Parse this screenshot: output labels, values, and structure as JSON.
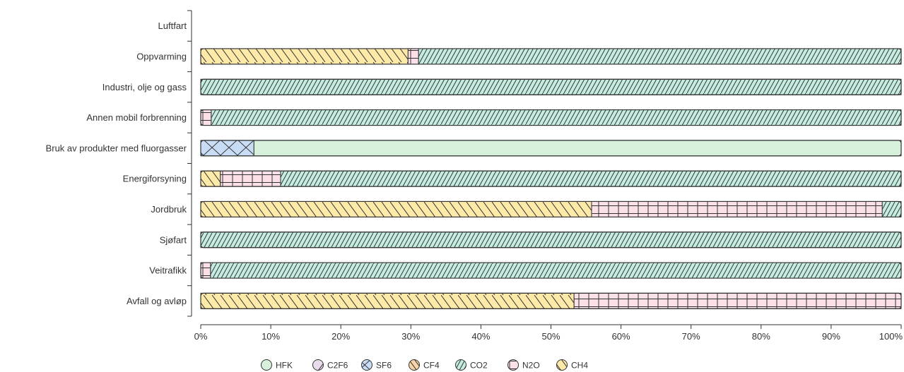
{
  "chart_data": {
    "type": "bar",
    "orientation": "horizontal",
    "stacked": "percent",
    "categories": [
      "Luftfart",
      "Oppvarming",
      "Industri, olje og gass",
      "Annen mobil forbrenning",
      "Bruk av produkter med fluorgasser",
      "Energiforsyning",
      "Jordbruk",
      "Sjøfart",
      "Veitrafikk",
      "Avfall og avløp"
    ],
    "series": [
      {
        "name": "CH4",
        "color": "#fde9a8",
        "pattern": "backslash",
        "values": [
          0,
          29.6,
          0,
          0,
          0,
          2.8,
          55.8,
          0,
          0,
          53.3
        ]
      },
      {
        "name": "N2O",
        "color": "#fbe0e8",
        "pattern": "cross",
        "values": [
          0,
          1.5,
          0,
          1.5,
          0,
          8.6,
          41.5,
          0,
          1.4,
          46.7
        ]
      },
      {
        "name": "CO2",
        "color": "#c4ece0",
        "pattern": "slash",
        "values": [
          0,
          68.9,
          100,
          98.5,
          0,
          88.6,
          2.7,
          100,
          98.6,
          0
        ]
      },
      {
        "name": "CF4",
        "color": "#f7d4a8",
        "pattern": "backslash-dense",
        "values": [
          0,
          0,
          0,
          0,
          0,
          0,
          0,
          0,
          0,
          0
        ]
      },
      {
        "name": "SF6",
        "color": "#c8dcf6",
        "pattern": "diagonal-cross",
        "values": [
          0,
          0,
          0,
          0,
          7.6,
          0,
          0,
          0,
          0,
          0
        ]
      },
      {
        "name": "C2F6",
        "color": "#e8dcec",
        "pattern": "slash-sparse",
        "values": [
          0,
          0,
          0,
          0,
          0,
          0,
          0,
          0,
          0,
          0
        ]
      },
      {
        "name": "HFK",
        "color": "#d6f0dc",
        "pattern": "none",
        "values": [
          0,
          0,
          0,
          0,
          92.4,
          0,
          0,
          0,
          0,
          0
        ]
      }
    ],
    "x_ticks": [
      "0%",
      "10%",
      "20%",
      "30%",
      "40%",
      "50%",
      "60%",
      "70%",
      "80%",
      "90%",
      "100%"
    ],
    "xlim": [
      0,
      100
    ],
    "legend": [
      "HFK",
      "C2F6",
      "SF6",
      "CF4",
      "CO2",
      "N2O",
      "CH4"
    ],
    "legend_position": "bottom",
    "grid": false
  }
}
